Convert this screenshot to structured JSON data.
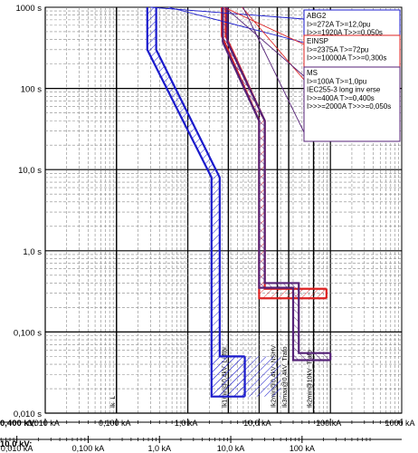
{
  "chart_data": {
    "type": "line",
    "title": "",
    "x_scale": "log",
    "y_scale": "log",
    "grid": true,
    "xlim_kA": [
      0.01,
      1000
    ],
    "ylim_s": [
      0.01,
      1000
    ],
    "y_ticks": [
      {
        "value": 1000,
        "label": "1000 s"
      },
      {
        "value": 100,
        "label": "100 s"
      },
      {
        "value": 10,
        "label": "10,0 s"
      },
      {
        "value": 1,
        "label": "1,0 s"
      },
      {
        "value": 0.1,
        "label": "0,100 s"
      },
      {
        "value": 0.01,
        "label": "0,010 s"
      }
    ],
    "x_axis_primary": {
      "label": "0,400 kV:",
      "ticks": [
        {
          "value": 0.01,
          "label": "0,010 kA"
        },
        {
          "value": 0.1,
          "label": "0,100 kA"
        },
        {
          "value": 1,
          "label": "1,0 kA"
        },
        {
          "value": 10,
          "label": "10,0 kA"
        },
        {
          "value": 100,
          "label": "100 kA"
        },
        {
          "value": 1000,
          "label": "1000 kA"
        }
      ]
    },
    "x_axis_secondary": {
      "label": "10,0 kV:",
      "ticks": [
        {
          "value": 0.0004,
          "label": "0,001 kA"
        },
        {
          "value": 0.004,
          "label": "0,010 kA"
        },
        {
          "value": 0.04,
          "label": "0,100 kA"
        },
        {
          "value": 0.4,
          "label": "1,0 kA"
        },
        {
          "value": 4,
          "label": "10,0 kA"
        },
        {
          "value": 40,
          "label": "100 kA"
        }
      ]
    },
    "markers": [
      {
        "x": 0.1,
        "label": "Ik_L"
      },
      {
        "x": 3.7,
        "label": "Ik1min@0,4kV_Luftbr."
      },
      {
        "x": 18,
        "label": "Ik2min@0,4kV_NSHV"
      },
      {
        "x": 26,
        "label": "Ik3max@0,4kV_Trafo"
      },
      {
        "x": 58,
        "label": "Ik2min@10kV_Trafo"
      }
    ],
    "series": [
      {
        "name": "ABG2",
        "color": "#1a1acc",
        "legend_lines": [
          "ABG2",
          "I>=272A  T>=12,0pu",
          "I>>=1920A  T>>=0,050s"
        ],
        "upper": [
          [
            0.36,
            1000
          ],
          [
            0.36,
            300
          ],
          [
            2.8,
            8
          ],
          [
            2.8,
            0.05
          ],
          [
            6.3,
            0.05
          ]
        ],
        "lower": [
          [
            0.27,
            1000
          ],
          [
            0.27,
            300
          ],
          [
            2.15,
            8
          ],
          [
            2.15,
            0.016
          ],
          [
            6.3,
            0.016
          ]
        ],
        "hatch_box": {
          "x": [
            2.15,
            20
          ],
          "y": [
            0.016,
            0.05
          ]
        }
      },
      {
        "name": "EINSP",
        "color": "#dd2222",
        "legend_lines": [
          "EINSP",
          "I>=2375A  T>=72pu",
          "I>>=10000A  T>>=0,300s"
        ],
        "upper": [
          [
            3.4,
            1000
          ],
          [
            3.4,
            440
          ],
          [
            12,
            40
          ],
          [
            12,
            0.34
          ],
          [
            88,
            0.34
          ]
        ],
        "lower": [
          [
            3.0,
            1000
          ],
          [
            3.0,
            440
          ],
          [
            10,
            40
          ],
          [
            10,
            0.26
          ],
          [
            88,
            0.26
          ]
        ]
      },
      {
        "name": "MS",
        "color": "#552277",
        "legend_lines": [
          "MS",
          "I>=100A  T>=1,0pu",
          "IEC255-3 long inv erse",
          "I>>=400A  T>=0,400s",
          "I>>>=2000A  T>>>=0,050s"
        ],
        "upper": [
          [
            3.6,
            1000
          ],
          [
            3.6,
            370
          ],
          [
            12,
            40
          ],
          [
            12,
            0.4
          ],
          [
            36,
            0.4
          ],
          [
            36,
            0.055
          ],
          [
            100,
            0.055
          ]
        ],
        "lower": [
          [
            3.1,
            1000
          ],
          [
            3.1,
            370
          ],
          [
            10,
            40
          ],
          [
            10,
            0.35
          ],
          [
            30,
            0.35
          ],
          [
            30,
            0.045
          ],
          [
            100,
            0.045
          ]
        ]
      }
    ]
  }
}
